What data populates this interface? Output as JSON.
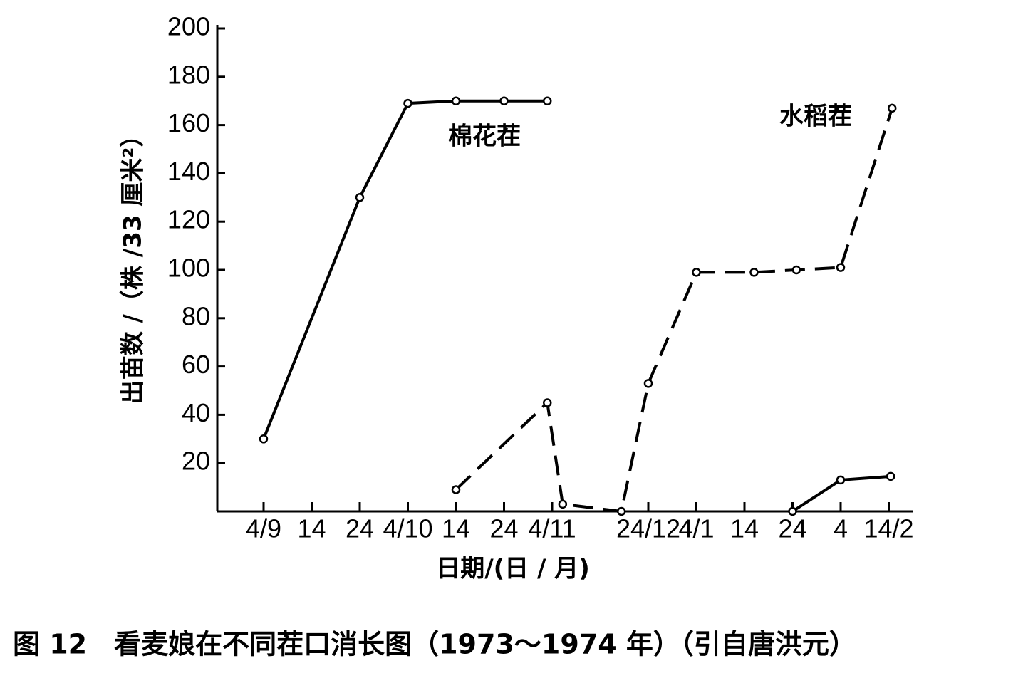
{
  "chart_data": {
    "type": "line",
    "caption": "图 12　看麦娘在不同茬口消长图（1973～1974 年）（引自唐洪元）",
    "xlabel": "日期/(日 / 月)",
    "ylabel": "出苗数 /（株 /33 厘米²）",
    "xlim": [
      -1,
      13.5
    ],
    "xticks": [
      {
        "value": 0,
        "label": "4/9"
      },
      {
        "value": 1,
        "label": "14"
      },
      {
        "value": 2,
        "label": "24"
      },
      {
        "value": 3,
        "label": "4/10"
      },
      {
        "value": 4,
        "label": "14"
      },
      {
        "value": 5,
        "label": "24"
      },
      {
        "value": 6,
        "label": "4/11"
      },
      {
        "value": 8,
        "label": "24/12"
      },
      {
        "value": 9,
        "label": "4/1"
      },
      {
        "value": 10,
        "label": "14"
      },
      {
        "value": 11,
        "label": "24"
      },
      {
        "value": 12,
        "label": "4"
      },
      {
        "value": 13,
        "label": "14/2"
      }
    ],
    "ylim": [
      0,
      200
    ],
    "yticks": [
      20,
      40,
      60,
      80,
      100,
      120,
      140,
      160,
      180,
      200
    ],
    "series": [
      {
        "name": "棉花茬",
        "color": "#000000",
        "dash": false,
        "x": [
          0,
          2,
          3,
          4,
          5,
          5.9,
          null,
          11,
          12,
          13.04
        ],
        "values": [
          30,
          130,
          169,
          170,
          170,
          170,
          null,
          0,
          13,
          14.5
        ]
      },
      {
        "name": "水稻茬",
        "color": "#000000",
        "dash": true,
        "x": [
          4,
          5.9,
          6.22,
          7.44,
          8,
          9,
          10.2,
          11.08,
          12,
          13.07
        ],
        "values": [
          9,
          45,
          3,
          0,
          53,
          99,
          99,
          100,
          101,
          167
        ]
      }
    ]
  }
}
